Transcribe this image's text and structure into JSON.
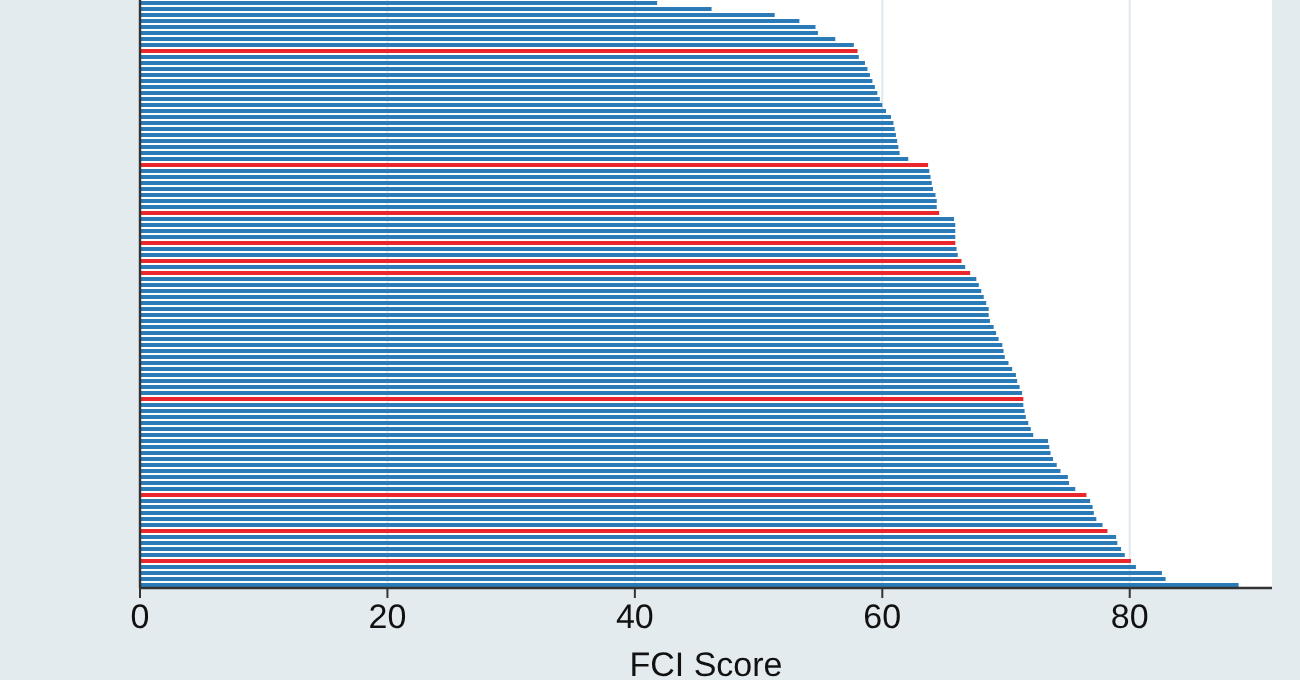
{
  "chart_data": {
    "type": "bar",
    "orientation": "horizontal",
    "xlabel": "FCI Score",
    "xlim": [
      0,
      91.5
    ],
    "xticks": [
      0,
      20,
      40,
      60,
      80
    ],
    "grid": "x",
    "categories": [
      null,
      null,
      null,
      null,
      null,
      null,
      null,
      null,
      null,
      null,
      null,
      null,
      null,
      null,
      null,
      null,
      null,
      null,
      null,
      null,
      null,
      null,
      null,
      null,
      null,
      null,
      null,
      null,
      null,
      null,
      null,
      null,
      null,
      null,
      null,
      null,
      null,
      null,
      null,
      null,
      null,
      null,
      null,
      null,
      null,
      null,
      null,
      null,
      null,
      null,
      null,
      null,
      null,
      null,
      null,
      null,
      null,
      null,
      null,
      null,
      null,
      null,
      null,
      null,
      null,
      null,
      null,
      null,
      null,
      null,
      null,
      null,
      null,
      null,
      null,
      null,
      null,
      null,
      null,
      null,
      null,
      null,
      null,
      null,
      null,
      null,
      null,
      null,
      null,
      null,
      null,
      null,
      null,
      null,
      null,
      null,
      null,
      null
    ],
    "values": [
      41.8,
      46.2,
      51.3,
      53.3,
      54.6,
      54.8,
      56.2,
      57.7,
      58.0,
      58.1,
      58.6,
      58.8,
      59.0,
      59.2,
      59.4,
      59.6,
      59.8,
      60.0,
      60.3,
      60.7,
      60.9,
      61.0,
      61.1,
      61.2,
      61.3,
      61.4,
      62.1,
      63.7,
      63.8,
      63.9,
      64.0,
      64.1,
      64.3,
      64.4,
      64.4,
      64.6,
      65.8,
      65.9,
      65.9,
      65.9,
      65.9,
      66.0,
      66.1,
      66.4,
      66.7,
      67.1,
      67.6,
      67.8,
      68.0,
      68.2,
      68.4,
      68.6,
      68.6,
      68.7,
      69.0,
      69.2,
      69.4,
      69.7,
      69.8,
      69.9,
      70.2,
      70.5,
      70.8,
      70.9,
      71.1,
      71.3,
      71.4,
      71.4,
      71.5,
      71.6,
      71.8,
      72.0,
      72.2,
      73.4,
      73.5,
      73.6,
      73.8,
      74.1,
      74.4,
      75.0,
      75.1,
      75.6,
      76.5,
      76.8,
      77.0,
      77.1,
      77.3,
      77.8,
      78.2,
      78.9,
      79.0,
      79.3,
      79.6,
      80.1,
      80.5,
      82.6,
      82.9,
      88.8
    ],
    "colors": [
      "#2a7ab7",
      "#2a7ab7",
      "#2a7ab7",
      "#2a7ab7",
      "#2a7ab7",
      "#2a7ab7",
      "#2a7ab7",
      "#2a7ab7",
      "#e8262b",
      "#2a7ab7",
      "#2a7ab7",
      "#2a7ab7",
      "#2a7ab7",
      "#2a7ab7",
      "#2a7ab7",
      "#2a7ab7",
      "#2a7ab7",
      "#2a7ab7",
      "#2a7ab7",
      "#2a7ab7",
      "#2a7ab7",
      "#2a7ab7",
      "#2a7ab7",
      "#2a7ab7",
      "#2a7ab7",
      "#2a7ab7",
      "#2a7ab7",
      "#e8262b",
      "#2a7ab7",
      "#2a7ab7",
      "#2a7ab7",
      "#2a7ab7",
      "#2a7ab7",
      "#2a7ab7",
      "#2a7ab7",
      "#e8262b",
      "#2a7ab7",
      "#2a7ab7",
      "#2a7ab7",
      "#2a7ab7",
      "#e8262b",
      "#2a7ab7",
      "#2a7ab7",
      "#e8262b",
      "#2a7ab7",
      "#e8262b",
      "#2a7ab7",
      "#2a7ab7",
      "#2a7ab7",
      "#2a7ab7",
      "#2a7ab7",
      "#2a7ab7",
      "#2a7ab7",
      "#2a7ab7",
      "#2a7ab7",
      "#2a7ab7",
      "#2a7ab7",
      "#2a7ab7",
      "#2a7ab7",
      "#2a7ab7",
      "#2a7ab7",
      "#2a7ab7",
      "#2a7ab7",
      "#2a7ab7",
      "#2a7ab7",
      "#2a7ab7",
      "#e8262b",
      "#2a7ab7",
      "#2a7ab7",
      "#2a7ab7",
      "#2a7ab7",
      "#2a7ab7",
      "#2a7ab7",
      "#2a7ab7",
      "#2a7ab7",
      "#2a7ab7",
      "#2a7ab7",
      "#2a7ab7",
      "#2a7ab7",
      "#2a7ab7",
      "#2a7ab7",
      "#2a7ab7",
      "#e8262b",
      "#2a7ab7",
      "#2a7ab7",
      "#2a7ab7",
      "#2a7ab7",
      "#2a7ab7",
      "#e8262b",
      "#2a7ab7",
      "#2a7ab7",
      "#2a7ab7",
      "#2a7ab7",
      "#e8262b",
      "#2a7ab7",
      "#2a7ab7",
      "#2a7ab7",
      "#2a7ab7"
    ]
  }
}
